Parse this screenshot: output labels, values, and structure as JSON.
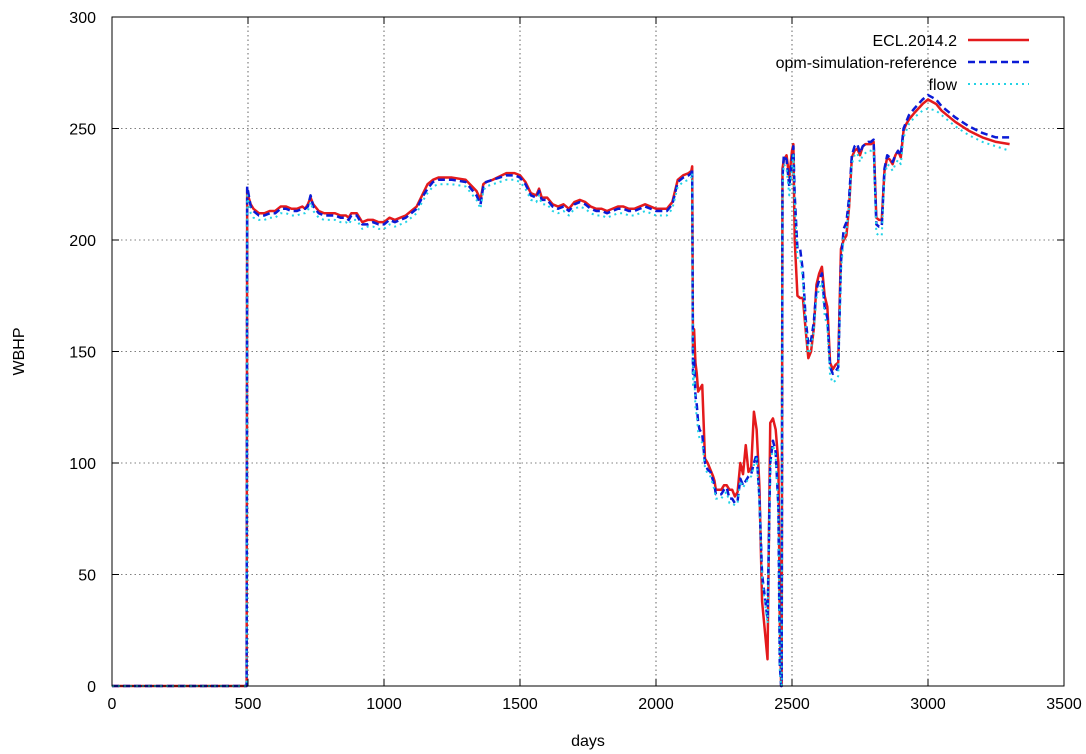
{
  "chart_data": {
    "type": "line",
    "title": "",
    "xlabel": "days",
    "ylabel": "WBHP",
    "xlim": [
      0,
      3500
    ],
    "ylim": [
      0,
      300
    ],
    "xticks": [
      0,
      500,
      1000,
      1500,
      2000,
      2500,
      3000,
      3500
    ],
    "yticks": [
      0,
      50,
      100,
      150,
      200,
      250,
      300
    ],
    "grid": true,
    "legend_position": "top-right",
    "series": [
      {
        "name": "ECL.2014.2",
        "color": "#e41a1c",
        "dash": "solid",
        "x": [
          0,
          495,
          497,
          500,
          510,
          520,
          540,
          560,
          580,
          600,
          620,
          640,
          660,
          680,
          700,
          710,
          720,
          730,
          740,
          760,
          780,
          800,
          820,
          840,
          860,
          870,
          880,
          900,
          920,
          940,
          960,
          980,
          1000,
          1020,
          1040,
          1060,
          1080,
          1100,
          1120,
          1140,
          1160,
          1180,
          1200,
          1250,
          1300,
          1340,
          1355,
          1365,
          1375,
          1400,
          1450,
          1480,
          1500,
          1520,
          1540,
          1560,
          1570,
          1580,
          1600,
          1620,
          1640,
          1660,
          1680,
          1700,
          1720,
          1740,
          1760,
          1780,
          1800,
          1820,
          1840,
          1860,
          1880,
          1900,
          1920,
          1940,
          1960,
          1980,
          2000,
          2020,
          2040,
          2060,
          2080,
          2100,
          2120,
          2130,
          2133,
          2136,
          2140,
          2145,
          2150,
          2155,
          2160,
          2170,
          2180,
          2190,
          2200,
          2210,
          2215,
          2220,
          2230,
          2240,
          2250,
          2260,
          2270,
          2280,
          2290,
          2300,
          2310,
          2320,
          2330,
          2340,
          2350,
          2360,
          2370,
          2380,
          2390,
          2400,
          2410,
          2420,
          2430,
          2440,
          2450,
          2455,
          2460,
          2462,
          2465,
          2470,
          2480,
          2490,
          2500,
          2505,
          2510,
          2520,
          2530,
          2540,
          2550,
          2560,
          2570,
          2580,
          2590,
          2600,
          2610,
          2620,
          2630,
          2640,
          2650,
          2660,
          2670,
          2680,
          2690,
          2700,
          2710,
          2720,
          2730,
          2740,
          2750,
          2760,
          2770,
          2780,
          2790,
          2800,
          2810,
          2820,
          2830,
          2840,
          2850,
          2860,
          2870,
          2880,
          2890,
          2900,
          2910,
          2920,
          2930,
          2950,
          2980,
          3000,
          3030,
          3050,
          3100,
          3150,
          3200,
          3250,
          3300
        ],
        "y": [
          0,
          0,
          223,
          220,
          216,
          214,
          212,
          212,
          213,
          213,
          215,
          215,
          214,
          214,
          215,
          214,
          216,
          219,
          216,
          213,
          212,
          212,
          212,
          211,
          211,
          210,
          212,
          212,
          208,
          209,
          209,
          208,
          208,
          210,
          209,
          210,
          211,
          213,
          215,
          220,
          225,
          227,
          228,
          228,
          227,
          222,
          218,
          225,
          226,
          227,
          230,
          230,
          229,
          226,
          221,
          220,
          223,
          219,
          219,
          216,
          215,
          216,
          214,
          217,
          218,
          217,
          215,
          214,
          214,
          213,
          214,
          215,
          215,
          214,
          214,
          215,
          216,
          215,
          214,
          214,
          214,
          217,
          227,
          229,
          230,
          231,
          233,
          150,
          160,
          145,
          140,
          132,
          133,
          135,
          102,
          100,
          97,
          94,
          92,
          88,
          88,
          88,
          90,
          90,
          88,
          88,
          85,
          87,
          100,
          95,
          108,
          96,
          98,
          123,
          115,
          90,
          38,
          25,
          12,
          118,
          120,
          115,
          100,
          30,
          0,
          0,
          232,
          236,
          238,
          228,
          240,
          243,
          200,
          175,
          174,
          174,
          160,
          147,
          150,
          160,
          180,
          185,
          188,
          175,
          170,
          145,
          142,
          144,
          145,
          196,
          200,
          202,
          215,
          237,
          240,
          241,
          238,
          242,
          243,
          243,
          243,
          244,
          210,
          209,
          209,
          231,
          237,
          236,
          234,
          238,
          240,
          237,
          249,
          252,
          254,
          257,
          261,
          263,
          261,
          258,
          253,
          249,
          246,
          244,
          243
        ],
        "stroke_width": 2.5
      },
      {
        "name": "opm-simulation-reference",
        "color": "#0b1bd6",
        "dash": "dashed",
        "x": [
          0,
          495,
          497,
          500,
          510,
          520,
          540,
          560,
          580,
          600,
          620,
          640,
          660,
          680,
          700,
          710,
          720,
          730,
          740,
          760,
          780,
          800,
          820,
          840,
          860,
          870,
          880,
          900,
          920,
          940,
          960,
          980,
          1000,
          1020,
          1040,
          1060,
          1080,
          1100,
          1120,
          1140,
          1160,
          1180,
          1200,
          1250,
          1300,
          1340,
          1355,
          1365,
          1375,
          1400,
          1450,
          1480,
          1500,
          1520,
          1540,
          1560,
          1570,
          1580,
          1600,
          1620,
          1640,
          1660,
          1680,
          1700,
          1720,
          1740,
          1760,
          1780,
          1800,
          1820,
          1840,
          1860,
          1880,
          1900,
          1920,
          1940,
          1960,
          1980,
          2000,
          2020,
          2040,
          2060,
          2080,
          2100,
          2120,
          2130,
          2133,
          2136,
          2140,
          2145,
          2150,
          2155,
          2160,
          2170,
          2180,
          2190,
          2200,
          2210,
          2215,
          2220,
          2230,
          2240,
          2250,
          2260,
          2270,
          2280,
          2290,
          2300,
          2310,
          2320,
          2330,
          2340,
          2350,
          2360,
          2370,
          2380,
          2390,
          2400,
          2410,
          2420,
          2430,
          2440,
          2450,
          2455,
          2460,
          2462,
          2465,
          2470,
          2480,
          2490,
          2500,
          2505,
          2510,
          2520,
          2530,
          2540,
          2550,
          2560,
          2570,
          2580,
          2590,
          2600,
          2610,
          2620,
          2630,
          2640,
          2650,
          2660,
          2670,
          2680,
          2690,
          2700,
          2710,
          2720,
          2730,
          2740,
          2750,
          2760,
          2770,
          2780,
          2790,
          2800,
          2810,
          2820,
          2830,
          2840,
          2850,
          2860,
          2870,
          2880,
          2890,
          2900,
          2910,
          2920,
          2930,
          2950,
          2980,
          3000,
          3030,
          3050,
          3100,
          3150,
          3200,
          3250,
          3300
        ],
        "y": [
          0,
          0,
          224,
          222,
          215,
          213,
          211,
          211,
          212,
          212,
          214,
          214,
          213,
          213,
          214,
          214,
          215,
          220,
          215,
          212,
          211,
          211,
          211,
          210,
          210,
          209,
          211,
          211,
          207,
          207,
          208,
          207,
          207,
          209,
          208,
          209,
          210,
          212,
          214,
          219,
          223,
          226,
          227,
          227,
          226,
          220,
          216,
          224,
          226,
          227,
          229,
          229,
          228,
          225,
          220,
          219,
          222,
          218,
          218,
          215,
          214,
          215,
          213,
          216,
          217,
          216,
          214,
          213,
          213,
          212,
          213,
          214,
          214,
          213,
          213,
          214,
          215,
          214,
          213,
          213,
          213,
          216,
          226,
          228,
          229,
          230,
          232,
          140,
          147,
          130,
          126,
          118,
          115,
          113,
          100,
          97,
          96,
          92,
          90,
          86,
          86,
          86,
          88,
          89,
          84,
          84,
          82,
          83,
          93,
          90,
          92,
          94,
          95,
          100,
          104,
          85,
          50,
          40,
          30,
          100,
          110,
          105,
          80,
          10,
          0,
          0,
          228,
          238,
          236,
          224,
          236,
          242,
          220,
          196,
          196,
          186,
          165,
          153,
          155,
          163,
          178,
          182,
          185,
          170,
          165,
          143,
          140,
          141,
          143,
          190,
          205,
          208,
          219,
          238,
          242,
          243,
          239,
          242,
          243,
          244,
          244,
          245,
          207,
          206,
          206,
          232,
          238,
          237,
          235,
          238,
          240,
          238,
          250,
          253,
          256,
          259,
          263,
          265,
          263,
          260,
          255,
          251,
          248,
          246,
          246
        ],
        "stroke_width": 2.5
      },
      {
        "name": "flow",
        "color": "#22d3e6",
        "dash": "dotted",
        "x": [
          0,
          495,
          497,
          500,
          510,
          520,
          540,
          560,
          580,
          600,
          620,
          640,
          660,
          680,
          700,
          710,
          720,
          730,
          740,
          760,
          780,
          800,
          820,
          840,
          860,
          870,
          880,
          900,
          920,
          940,
          960,
          980,
          1000,
          1020,
          1040,
          1060,
          1080,
          1100,
          1120,
          1140,
          1160,
          1180,
          1200,
          1250,
          1300,
          1340,
          1355,
          1365,
          1375,
          1400,
          1450,
          1480,
          1500,
          1520,
          1540,
          1560,
          1570,
          1580,
          1600,
          1620,
          1640,
          1660,
          1680,
          1700,
          1720,
          1740,
          1760,
          1780,
          1800,
          1820,
          1840,
          1860,
          1880,
          1900,
          1920,
          1940,
          1960,
          1980,
          2000,
          2020,
          2040,
          2060,
          2080,
          2100,
          2120,
          2130,
          2133,
          2136,
          2140,
          2145,
          2150,
          2155,
          2160,
          2170,
          2180,
          2190,
          2200,
          2210,
          2215,
          2220,
          2230,
          2240,
          2250,
          2260,
          2270,
          2280,
          2290,
          2300,
          2310,
          2320,
          2330,
          2340,
          2350,
          2360,
          2370,
          2380,
          2390,
          2400,
          2410,
          2420,
          2430,
          2440,
          2450,
          2455,
          2460,
          2462,
          2465,
          2470,
          2480,
          2490,
          2500,
          2505,
          2510,
          2520,
          2530,
          2540,
          2550,
          2560,
          2570,
          2580,
          2590,
          2600,
          2610,
          2620,
          2630,
          2640,
          2650,
          2660,
          2670,
          2680,
          2690,
          2700,
          2710,
          2720,
          2730,
          2740,
          2750,
          2760,
          2770,
          2780,
          2790,
          2800,
          2810,
          2820,
          2830,
          2840,
          2850,
          2860,
          2870,
          2880,
          2890,
          2900,
          2910,
          2920,
          2930,
          2950,
          2980,
          3000,
          3030,
          3050,
          3100,
          3150,
          3200,
          3250,
          3300
        ],
        "y": [
          0,
          0,
          220,
          218,
          212,
          210,
          209,
          209,
          210,
          210,
          212,
          212,
          211,
          211,
          212,
          212,
          213,
          217,
          213,
          210,
          209,
          209,
          209,
          208,
          208,
          207,
          209,
          209,
          205,
          206,
          206,
          205,
          205,
          207,
          206,
          207,
          208,
          210,
          212,
          217,
          221,
          224,
          225,
          225,
          224,
          218,
          214,
          222,
          224,
          225,
          227,
          227,
          226,
          223,
          218,
          217,
          220,
          216,
          216,
          213,
          212,
          213,
          211,
          214,
          215,
          214,
          212,
          211,
          211,
          210,
          211,
          212,
          212,
          211,
          211,
          212,
          213,
          212,
          211,
          211,
          211,
          214,
          224,
          226,
          227,
          228,
          230,
          135,
          142,
          125,
          121,
          114,
          111,
          109,
          98,
          95,
          94,
          90,
          88,
          84,
          84,
          84,
          86,
          87,
          82,
          82,
          81,
          82,
          92,
          89,
          91,
          93,
          94,
          99,
          102,
          83,
          48,
          38,
          28,
          98,
          108,
          103,
          78,
          8,
          0,
          0,
          224,
          234,
          232,
          220,
          232,
          238,
          216,
          192,
          192,
          182,
          161,
          149,
          151,
          159,
          174,
          178,
          181,
          166,
          161,
          139,
          136,
          137,
          139,
          186,
          201,
          204,
          215,
          234,
          238,
          239,
          235,
          238,
          239,
          240,
          240,
          241,
          203,
          202,
          202,
          228,
          234,
          233,
          231,
          234,
          236,
          234,
          246,
          249,
          252,
          255,
          258,
          259,
          258,
          256,
          251,
          247,
          244,
          242,
          240
        ],
        "stroke_width": 2
      }
    ]
  }
}
